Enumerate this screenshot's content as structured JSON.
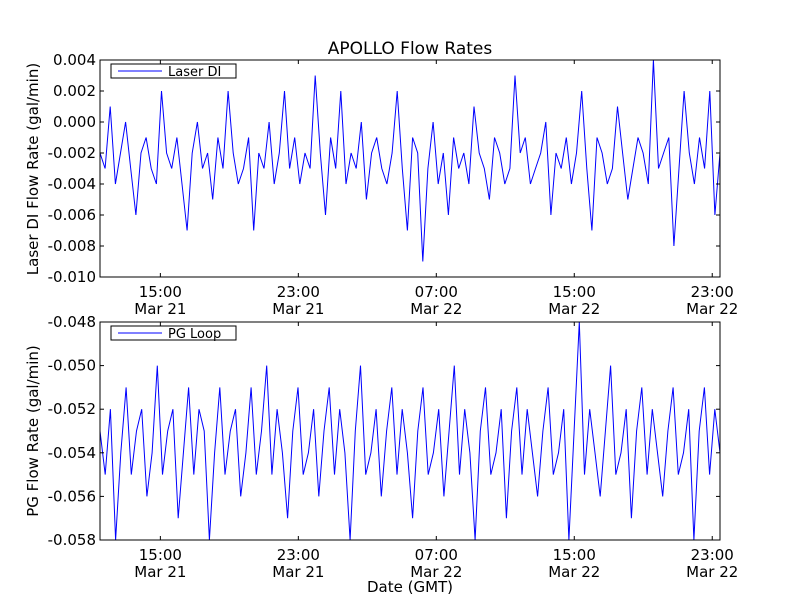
{
  "chart_data": [
    {
      "type": "line",
      "title": "APOLLO Flow Rates",
      "ylabel": "Laser DI Flow Rate (gal/min)",
      "xlabel": "",
      "ylim": [
        -0.01,
        0.004
      ],
      "yticks": [
        "0.004",
        "0.002",
        "0.000",
        "-0.002",
        "-0.004",
        "-0.006",
        "-0.008",
        "-0.010"
      ],
      "ytick_values": [
        0.004,
        0.002,
        0.0,
        -0.002,
        -0.004,
        -0.006,
        -0.008,
        -0.01
      ],
      "xlim_hours_from_mar21_1500": [
        -3.5,
        32.45
      ],
      "xticks": [
        {
          "time": "15:00",
          "date": "Mar 21",
          "hours": 0
        },
        {
          "time": "23:00",
          "date": "Mar 21",
          "hours": 8
        },
        {
          "time": "07:00",
          "date": "Mar 22",
          "hours": 16
        },
        {
          "time": "15:00",
          "date": "Mar 22",
          "hours": 24
        },
        {
          "time": "23:00",
          "date": "Mar 22",
          "hours": 32
        }
      ],
      "grid": false,
      "legend": {
        "label": "Laser DI",
        "placement": "top-left"
      },
      "color": "#0000ff",
      "unit_scale": 0.001,
      "values": [
        -2,
        -3,
        1,
        -4,
        -2,
        0,
        -3,
        -6,
        -2,
        -1,
        -3,
        -4,
        2,
        -2,
        -3,
        -1,
        -4,
        -7,
        -2,
        0,
        -3,
        -2,
        -5,
        -1,
        -3,
        2,
        -2,
        -4,
        -3,
        -1,
        -7,
        -2,
        -3,
        0,
        -4,
        -2,
        2,
        -3,
        -1,
        -4,
        -2,
        -3,
        3,
        -2,
        -6,
        -1,
        -3,
        2,
        -4,
        -2,
        -3,
        0,
        -5,
        -2,
        -1,
        -3,
        -4,
        -2,
        2,
        -3,
        -7,
        -1,
        -2,
        -9,
        -3,
        0,
        -4,
        -2,
        -6,
        -1,
        -3,
        -2,
        -4,
        1,
        -2,
        -3,
        -5,
        -1,
        -2,
        -4,
        -3,
        3,
        -2,
        -1,
        -4,
        -3,
        -2,
        0,
        -6,
        -2,
        -3,
        -1,
        -4,
        -2,
        2,
        -3,
        -7,
        -1,
        -2,
        -4,
        -3,
        1,
        -2,
        -5,
        -3,
        -1,
        -2,
        -4,
        4,
        -3,
        -2,
        -1,
        -8,
        -3,
        2,
        -2,
        -4,
        -1,
        -3,
        2,
        -6,
        -2
      ]
    },
    {
      "type": "line",
      "title": "",
      "ylabel": "PG Flow Rate (gal/min)",
      "xlabel": "Date (GMT)",
      "ylim": [
        -0.058,
        -0.048
      ],
      "yticks": [
        "-0.048",
        "-0.050",
        "-0.052",
        "-0.054",
        "-0.056",
        "-0.058"
      ],
      "ytick_values": [
        -0.048,
        -0.05,
        -0.052,
        -0.054,
        -0.056,
        -0.058
      ],
      "xlim_hours_from_mar21_1500": [
        -3.5,
        32.45
      ],
      "xticks": [
        {
          "time": "15:00",
          "date": "Mar 21",
          "hours": 0
        },
        {
          "time": "23:00",
          "date": "Mar 21",
          "hours": 8
        },
        {
          "time": "07:00",
          "date": "Mar 22",
          "hours": 16
        },
        {
          "time": "15:00",
          "date": "Mar 22",
          "hours": 24
        },
        {
          "time": "23:00",
          "date": "Mar 22",
          "hours": 32
        }
      ],
      "grid": false,
      "legend": {
        "label": "PG Loop",
        "placement": "top-left"
      },
      "color": "#0000ff",
      "unit_scale": 0.001,
      "values": [
        -53,
        -55,
        -52,
        -58,
        -54,
        -51,
        -55,
        -53,
        -52,
        -56,
        -54,
        -50,
        -55,
        -53,
        -52,
        -57,
        -54,
        -51,
        -55,
        -52,
        -53,
        -58,
        -54,
        -51,
        -55,
        -53,
        -52,
        -56,
        -54,
        -51,
        -55,
        -53,
        -50,
        -55,
        -52,
        -54,
        -57,
        -53,
        -51,
        -55,
        -54,
        -52,
        -56,
        -53,
        -51,
        -55,
        -52,
        -54,
        -58,
        -53,
        -50,
        -55,
        -54,
        -52,
        -56,
        -53,
        -51,
        -55,
        -52,
        -54,
        -57,
        -53,
        -51,
        -55,
        -54,
        -52,
        -56,
        -53,
        -50,
        -55,
        -52,
        -54,
        -58,
        -53,
        -51,
        -55,
        -54,
        -52,
        -57,
        -53,
        -51,
        -55,
        -52,
        -54,
        -56,
        -53,
        -51,
        -55,
        -54,
        -52,
        -58,
        -53,
        -48,
        -55,
        -52,
        -54,
        -56,
        -53,
        -50,
        -55,
        -54,
        -52,
        -57,
        -53,
        -51,
        -55,
        -52,
        -54,
        -56,
        -53,
        -51,
        -55,
        -54,
        -52,
        -58,
        -53,
        -51,
        -55,
        -52,
        -54
      ]
    }
  ]
}
